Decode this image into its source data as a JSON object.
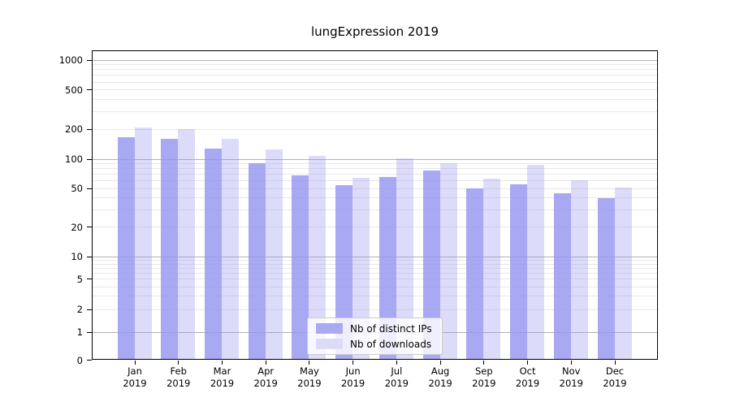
{
  "title": "lungExpression 2019",
  "chart_data": {
    "type": "bar",
    "title": "lungExpression 2019",
    "months": [
      "Jan",
      "Feb",
      "Mar",
      "Apr",
      "May",
      "Jun",
      "Jul",
      "Aug",
      "Sep",
      "Oct",
      "Nov",
      "Dec"
    ],
    "year": "2019",
    "categories": [
      "Jan 2019",
      "Feb 2019",
      "Mar 2019",
      "Apr 2019",
      "May 2019",
      "Jun 2019",
      "Jul 2019",
      "Aug 2019",
      "Sep 2019",
      "Oct 2019",
      "Nov 2019",
      "Dec 2019"
    ],
    "series": [
      {
        "name": "Nb of distinct IPs",
        "legend_color": "#aaaaf2",
        "fill": "rgba(146,146,240,0.8)",
        "values": [
          165,
          160,
          128,
          90,
          68,
          54,
          66,
          77,
          50,
          55,
          45,
          40
        ]
      },
      {
        "name": "Nb of downloads",
        "legend_color": "#dcdcf8",
        "fill": "rgba(146,146,240,0.32)",
        "values": [
          207,
          200,
          160,
          125,
          108,
          64,
          101,
          90,
          63,
          88,
          61,
          51
        ]
      }
    ],
    "yscale": "symlog",
    "y_ticks": [
      0,
      1,
      2,
      5,
      10,
      20,
      50,
      100,
      200,
      500,
      1000
    ],
    "y_major_gridlines": [
      1,
      10,
      100,
      1000
    ],
    "ylim": [
      0,
      1250
    ],
    "grid": true,
    "legend_position": "lower-center-inside",
    "xlabel": "",
    "ylabel": ""
  },
  "colors": {
    "major_grid": "#b2b2b2",
    "minor_grid": "#e8e8e8",
    "axis": "#000000",
    "legend_border": "#cccccc"
  }
}
